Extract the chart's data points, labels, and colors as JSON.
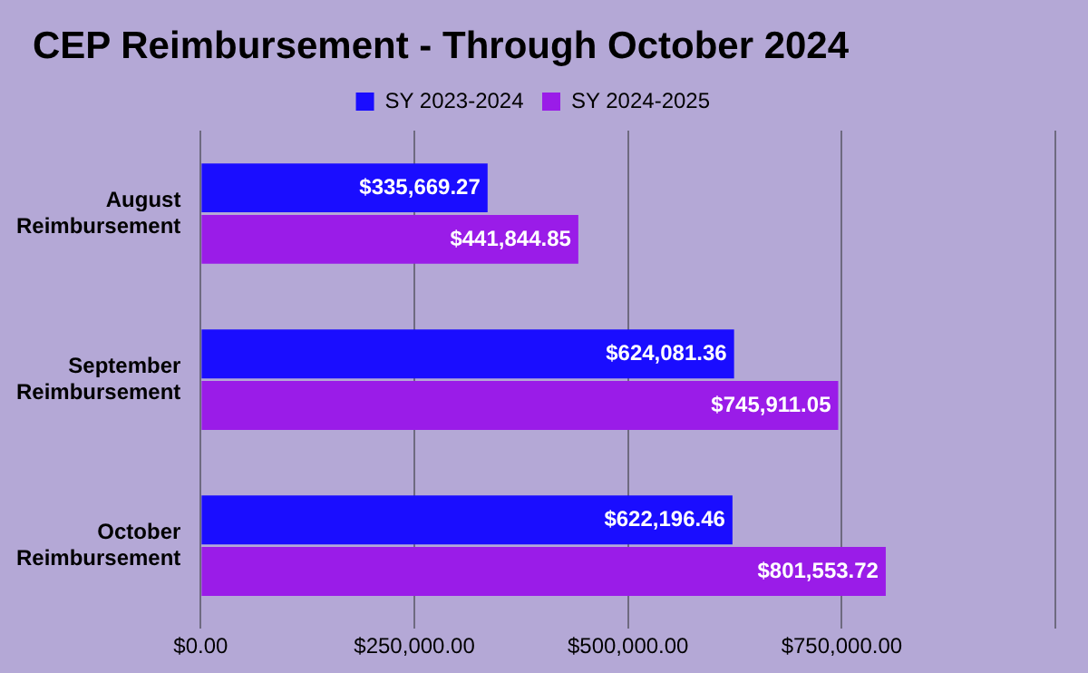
{
  "chart_data": {
    "type": "bar",
    "orientation": "horizontal",
    "title": "CEP Reimbursement - Through October 2024",
    "categories": [
      "August Reimbursement",
      "September Reimbursement",
      "October Reimbursement"
    ],
    "series": [
      {
        "name": "SY 2023-2024",
        "color": "#1a0dff",
        "values": [
          335669.27,
          624081.36,
          622196.46
        ],
        "value_labels": [
          "$335,669.27",
          "$624,081.36",
          "$622,196.46"
        ]
      },
      {
        "name": "SY 2024-2025",
        "color": "#9a1ce8",
        "values": [
          441844.85,
          745911.05,
          801553.72
        ],
        "value_labels": [
          "$441,844.85",
          "$745,911.05",
          "$801,553.72"
        ]
      }
    ],
    "xlim": [
      0,
      1000000
    ],
    "xticks": [
      {
        "value": 0,
        "label": "$0.00"
      },
      {
        "value": 250000,
        "label": "$250,000.00"
      },
      {
        "value": 500000,
        "label": "$500,000.00"
      },
      {
        "value": 750000,
        "label": "$750,000.00"
      },
      {
        "value": 1000000,
        "label": null
      }
    ],
    "grid": "x",
    "legend": "top"
  }
}
